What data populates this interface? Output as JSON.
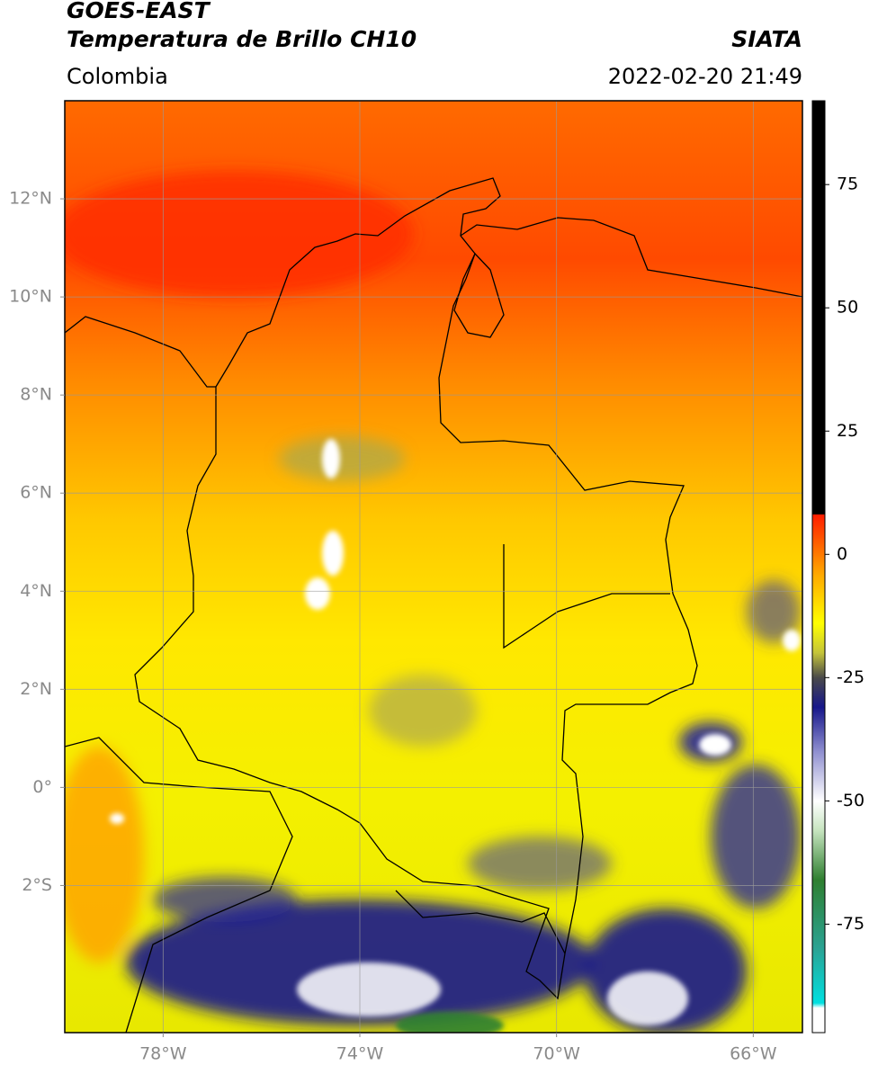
{
  "header": {
    "satellite": "GOES-EAST",
    "product": "Temperatura de Brillo CH10",
    "institution": "SIATA",
    "region": "Colombia",
    "datetime": "2022-02-20 21:49"
  },
  "map": {
    "xlim": [
      -80,
      -65
    ],
    "ylim": [
      -5,
      14
    ],
    "grid": true,
    "xticks": [
      {
        "value": -78,
        "label": "78°W"
      },
      {
        "value": -74,
        "label": "74°W"
      },
      {
        "value": -70,
        "label": "70°W"
      },
      {
        "value": -66,
        "label": "66°W"
      }
    ],
    "yticks": [
      {
        "value": 12,
        "label": "12°N"
      },
      {
        "value": 10,
        "label": "10°N"
      },
      {
        "value": 8,
        "label": "8°N"
      },
      {
        "value": 6,
        "label": "6°N"
      },
      {
        "value": 4,
        "label": "4°N"
      },
      {
        "value": 2,
        "label": "2°N"
      },
      {
        "value": 0,
        "label": "0°"
      },
      {
        "value": -2,
        "label": "2°S"
      }
    ]
  },
  "colorbar": {
    "ylim": [
      -97,
      92
    ],
    "yticks": [
      75,
      50,
      25,
      0,
      -25,
      -50,
      -75
    ],
    "stops": [
      {
        "value": -97,
        "color": "#ffffff"
      },
      {
        "value": -92,
        "color": "#ffffff"
      },
      {
        "value": -91,
        "color": "#00e0e0"
      },
      {
        "value": -80,
        "color": "#2aa394"
      },
      {
        "value": -66,
        "color": "#2f7f30"
      },
      {
        "value": -56,
        "color": "#c6e4bf"
      },
      {
        "value": -50,
        "color": "#ffffff"
      },
      {
        "value": -40,
        "color": "#8f8fd0"
      },
      {
        "value": -31,
        "color": "#16168a"
      },
      {
        "value": -25,
        "color": "#4a4a4a"
      },
      {
        "value": -20,
        "color": "#c4c43a"
      },
      {
        "value": -14,
        "color": "#ffff00"
      },
      {
        "value": -4,
        "color": "#ffa800"
      },
      {
        "value": 8,
        "color": "#ff1e00"
      },
      {
        "value": 8.2,
        "color": "#000000"
      },
      {
        "value": 92,
        "color": "#000000"
      }
    ]
  }
}
